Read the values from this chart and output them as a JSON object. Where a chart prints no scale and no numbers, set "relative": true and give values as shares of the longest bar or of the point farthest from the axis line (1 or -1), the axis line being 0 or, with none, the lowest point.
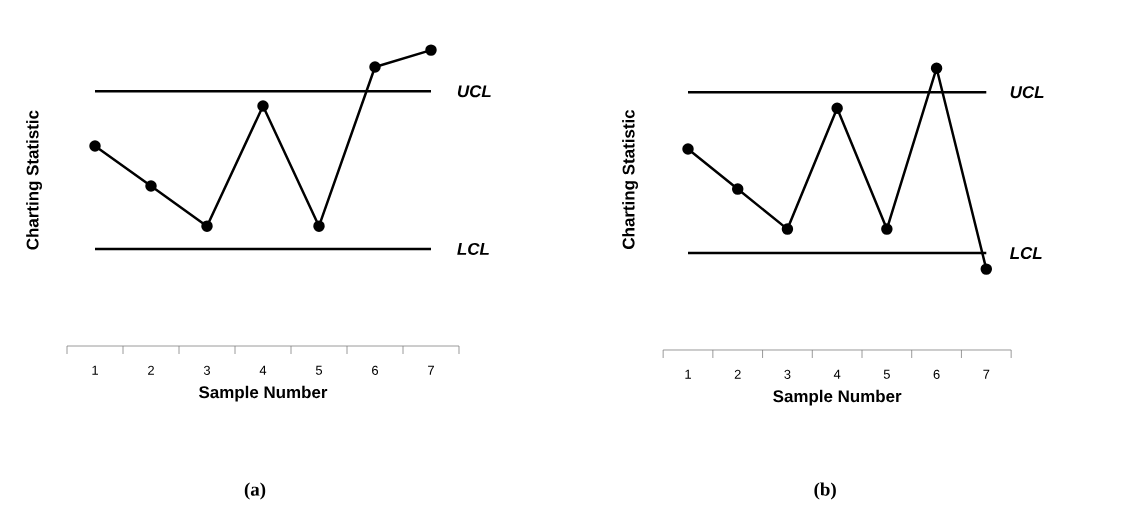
{
  "chart_data": [
    {
      "type": "line",
      "relative": true,
      "categories": [
        "1",
        "2",
        "3",
        "4",
        "5",
        "6",
        "7"
      ],
      "xlabel": "Sample Number",
      "ylabel": "Charting Statistic",
      "tick_labels": "x",
      "grid": false,
      "marker": "circle",
      "line_style": "solid",
      "series": [
        {
          "color": "#000000",
          "values": [
            0.676,
            0.541,
            0.405,
            0.811,
            0.405,
            0.943,
            1
          ]
        }
      ],
      "ref_lines": [
        {
          "axis": "y",
          "value": 0.861,
          "label": "UCL",
          "color": "#000000"
        },
        {
          "axis": "y",
          "value": 0.328,
          "label": "LCL",
          "color": "#000000"
        }
      ],
      "annotations": [
        "**(a)**"
      ]
    },
    {
      "type": "line",
      "relative": true,
      "categories": [
        "1",
        "2",
        "3",
        "4",
        "5",
        "6",
        "7"
      ],
      "xlabel": "Sample Number",
      "ylabel": "Charting Statistic",
      "tick_labels": "x",
      "grid": false,
      "marker": "circle",
      "line_style": "solid",
      "series": [
        {
          "color": "#000000",
          "values": [
            0.713,
            0.571,
            0.429,
            0.858,
            0.429,
            1,
            0.287
          ]
        }
      ],
      "ref_lines": [
        {
          "axis": "y",
          "value": 0.915,
          "label": "UCL",
          "color": "#000000"
        },
        {
          "axis": "y",
          "value": 0.344,
          "label": "LCL",
          "color": "#000000"
        }
      ],
      "annotations": [
        "**(b)**"
      ]
    }
  ]
}
